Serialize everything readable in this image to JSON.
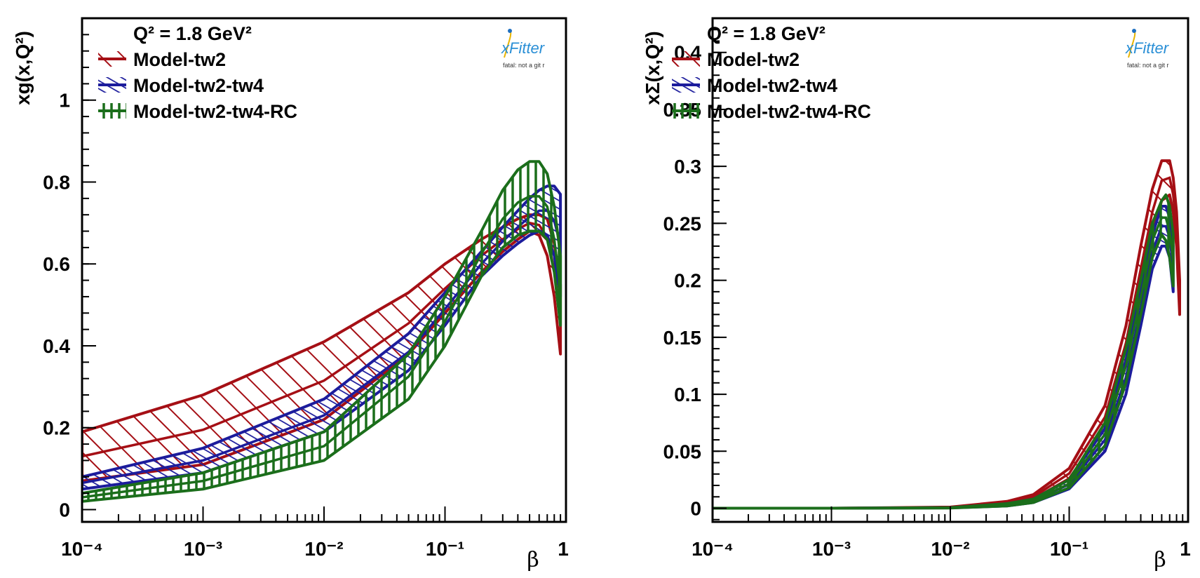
{
  "colors": {
    "model_tw2": "#a50f15",
    "model_tw2_tw4": "#1c1c9c",
    "model_tw2_tw4_rc": "#1b6e1b"
  },
  "logo": {
    "name": "xFitter",
    "subtitle": "fatal: not a git r"
  },
  "chart_data": [
    {
      "type": "area",
      "ylabel": "xg(x,Q²)",
      "xlabel": "β",
      "xscale": "log",
      "xlim": [
        0.0001,
        1
      ],
      "ylim": [
        -0.03,
        1.2
      ],
      "x_tick_labels": [
        "10⁻⁴",
        "10⁻³",
        "10⁻²",
        "10⁻¹",
        "1"
      ],
      "y_ticks": [
        0,
        0.2,
        0.4,
        0.6,
        0.8,
        1
      ],
      "y_tick_labels": [
        "0",
        "0.2",
        "0.4",
        "0.6",
        "0.8",
        "1"
      ],
      "legend": {
        "title": "Q² = 1.8 GeV²",
        "entries": [
          "Model-tw2",
          "Model-tw2-tw4",
          "Model-tw2-tw4-RC"
        ]
      },
      "series": [
        {
          "name": "Model-tw2",
          "color_key": "model_tw2",
          "hatch": "diagonal",
          "x": [
            0.0001,
            0.001,
            0.01,
            0.05,
            0.1,
            0.2,
            0.3,
            0.4,
            0.5,
            0.6,
            0.7,
            0.8,
            0.9
          ],
          "upper": [
            0.19,
            0.28,
            0.41,
            0.53,
            0.6,
            0.66,
            0.69,
            0.71,
            0.72,
            0.72,
            0.71,
            0.65,
            0.55
          ],
          "lower": [
            0.07,
            0.11,
            0.22,
            0.38,
            0.48,
            0.58,
            0.63,
            0.66,
            0.68,
            0.67,
            0.62,
            0.52,
            0.38
          ]
        },
        {
          "name": "Model-tw2-tw4",
          "color_key": "model_tw2_tw4",
          "hatch": "dense-diagonal",
          "x": [
            0.0001,
            0.001,
            0.01,
            0.05,
            0.1,
            0.2,
            0.3,
            0.4,
            0.5,
            0.6,
            0.7,
            0.8,
            0.9
          ],
          "upper": [
            0.08,
            0.15,
            0.27,
            0.43,
            0.53,
            0.63,
            0.69,
            0.73,
            0.76,
            0.78,
            0.79,
            0.79,
            0.77
          ],
          "lower": [
            0.05,
            0.09,
            0.19,
            0.34,
            0.45,
            0.57,
            0.62,
            0.65,
            0.67,
            0.68,
            0.67,
            0.62,
            0.52
          ]
        },
        {
          "name": "Model-tw2-tw4-RC",
          "color_key": "model_tw2_tw4_rc",
          "hatch": "vertical",
          "x": [
            0.0001,
            0.001,
            0.01,
            0.05,
            0.1,
            0.2,
            0.3,
            0.4,
            0.5,
            0.6,
            0.7,
            0.8,
            0.9
          ],
          "upper": [
            0.04,
            0.09,
            0.19,
            0.38,
            0.52,
            0.68,
            0.78,
            0.83,
            0.85,
            0.85,
            0.82,
            0.74,
            0.62
          ],
          "lower": [
            0.02,
            0.05,
            0.12,
            0.27,
            0.4,
            0.57,
            0.64,
            0.67,
            0.68,
            0.68,
            0.66,
            0.58,
            0.45
          ]
        }
      ]
    },
    {
      "type": "area",
      "ylabel": "xΣ(x,Q²)",
      "xlabel": "β",
      "xscale": "log",
      "xlim": [
        0.0001,
        1
      ],
      "ylim": [
        -0.012,
        0.43
      ],
      "x_tick_labels": [
        "10⁻⁴",
        "10⁻³",
        "10⁻²",
        "10⁻¹",
        "1"
      ],
      "y_ticks": [
        0,
        0.05,
        0.1,
        0.15,
        0.2,
        0.25,
        0.3,
        0.35,
        0.4
      ],
      "y_tick_labels": [
        "0",
        "0.05",
        "0.1",
        "0.15",
        "0.2",
        "0.25",
        "0.3",
        "0.35",
        "0.4"
      ],
      "legend": {
        "title": "Q² = 1.8 GeV²",
        "entries": [
          "Model-tw2",
          "Model-tw2-tw4",
          "Model-tw2-tw4-RC"
        ]
      },
      "series": [
        {
          "name": "Model-tw2",
          "color_key": "model_tw2",
          "hatch": "diagonal",
          "x": [
            0.0001,
            0.001,
            0.01,
            0.03,
            0.05,
            0.1,
            0.2,
            0.3,
            0.4,
            0.5,
            0.6,
            0.7,
            0.75,
            0.8,
            0.85
          ],
          "upper": [
            0,
            0,
            0.001,
            0.006,
            0.012,
            0.035,
            0.09,
            0.16,
            0.23,
            0.28,
            0.305,
            0.305,
            0.29,
            0.26,
            0.2
          ],
          "lower": [
            0,
            0,
            0.0005,
            0.004,
            0.008,
            0.026,
            0.07,
            0.13,
            0.19,
            0.24,
            0.27,
            0.275,
            0.26,
            0.23,
            0.17
          ]
        },
        {
          "name": "Model-tw2-tw4",
          "color_key": "model_tw2_tw4",
          "hatch": "dense-diagonal",
          "x": [
            0.0001,
            0.001,
            0.01,
            0.03,
            0.05,
            0.1,
            0.2,
            0.3,
            0.4,
            0.5,
            0.6,
            0.65,
            0.7,
            0.75
          ],
          "upper": [
            0,
            0,
            0.0005,
            0.004,
            0.008,
            0.025,
            0.07,
            0.13,
            0.19,
            0.24,
            0.265,
            0.265,
            0.255,
            0.23
          ],
          "lower": [
            0,
            0,
            0.0003,
            0.002,
            0.005,
            0.017,
            0.05,
            0.1,
            0.16,
            0.21,
            0.23,
            0.23,
            0.22,
            0.19
          ]
        },
        {
          "name": "Model-tw2-tw4-RC",
          "color_key": "model_tw2_tw4_rc",
          "hatch": "vertical",
          "x": [
            0.0001,
            0.001,
            0.01,
            0.03,
            0.05,
            0.1,
            0.2,
            0.3,
            0.4,
            0.5,
            0.6,
            0.65,
            0.7,
            0.75
          ],
          "upper": [
            0,
            0,
            0.0005,
            0.004,
            0.008,
            0.025,
            0.075,
            0.14,
            0.2,
            0.25,
            0.27,
            0.275,
            0.265,
            0.24
          ],
          "lower": [
            0,
            0,
            0.0002,
            0.002,
            0.005,
            0.018,
            0.055,
            0.11,
            0.17,
            0.22,
            0.24,
            0.235,
            0.22,
            0.195
          ]
        }
      ]
    }
  ]
}
